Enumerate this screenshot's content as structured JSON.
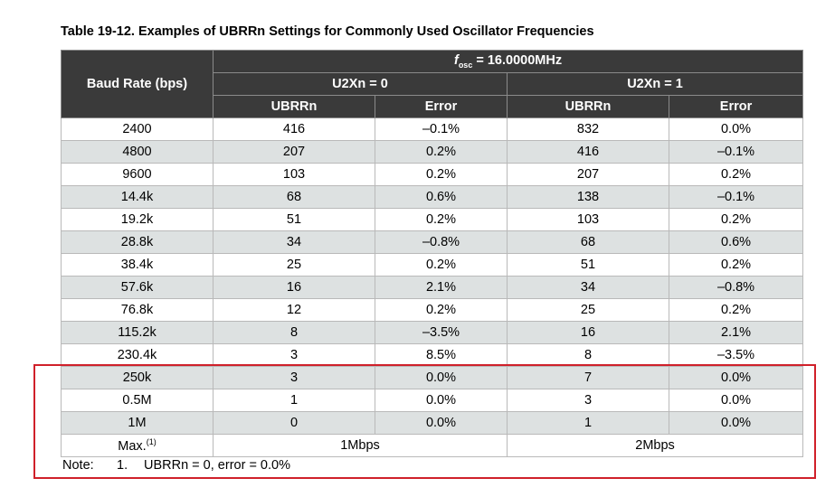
{
  "caption": "Table 19-12. Examples of UBRRn Settings for Commonly Used Oscillator Frequencies",
  "header": {
    "baud_rate": "Baud Rate (bps)",
    "fosc_symbol": "f",
    "fosc_subscript": "osc",
    "fosc_value": " = 16.0000MHz",
    "group_u2x0": "U2Xn = 0",
    "group_u2x1": "U2Xn = 1",
    "ubrr": "UBRRn",
    "error": "Error"
  },
  "rows": [
    {
      "baud": "2400",
      "ubrr0": "416",
      "err0": "–0.1%",
      "ubrr1": "832",
      "err1": "0.0%"
    },
    {
      "baud": "4800",
      "ubrr0": "207",
      "err0": "0.2%",
      "ubrr1": "416",
      "err1": "–0.1%"
    },
    {
      "baud": "9600",
      "ubrr0": "103",
      "err0": "0.2%",
      "ubrr1": "207",
      "err1": "0.2%"
    },
    {
      "baud": "14.4k",
      "ubrr0": "68",
      "err0": "0.6%",
      "ubrr1": "138",
      "err1": "–0.1%"
    },
    {
      "baud": "19.2k",
      "ubrr0": "51",
      "err0": "0.2%",
      "ubrr1": "103",
      "err1": "0.2%"
    },
    {
      "baud": "28.8k",
      "ubrr0": "34",
      "err0": "–0.8%",
      "ubrr1": "68",
      "err1": "0.6%"
    },
    {
      "baud": "38.4k",
      "ubrr0": "25",
      "err0": "0.2%",
      "ubrr1": "51",
      "err1": "0.2%"
    },
    {
      "baud": "57.6k",
      "ubrr0": "16",
      "err0": "2.1%",
      "ubrr1": "34",
      "err1": "–0.8%"
    },
    {
      "baud": "76.8k",
      "ubrr0": "12",
      "err0": "0.2%",
      "ubrr1": "25",
      "err1": "0.2%"
    },
    {
      "baud": "115.2k",
      "ubrr0": "8",
      "err0": "–3.5%",
      "ubrr1": "16",
      "err1": "2.1%"
    },
    {
      "baud": "230.4k",
      "ubrr0": "3",
      "err0": "8.5%",
      "ubrr1": "8",
      "err1": "–3.5%"
    },
    {
      "baud": "250k",
      "ubrr0": "3",
      "err0": "0.0%",
      "ubrr1": "7",
      "err1": "0.0%"
    },
    {
      "baud": "0.5M",
      "ubrr0": "1",
      "err0": "0.0%",
      "ubrr1": "3",
      "err1": "0.0%"
    },
    {
      "baud": "1M",
      "ubrr0": "0",
      "err0": "0.0%",
      "ubrr1": "1",
      "err1": "0.0%"
    }
  ],
  "max_row": {
    "label": "Max.",
    "footnote_ref": "(1)",
    "u2x0": "1Mbps",
    "u2x1": "2Mbps"
  },
  "note": {
    "label": "Note:",
    "number": "1.",
    "text": "UBRRn = 0, error = 0.0%"
  },
  "colors": {
    "header_bg": "#3a3a3a",
    "alt_row_bg": "#dde1e1",
    "highlight": "#d0202a"
  }
}
